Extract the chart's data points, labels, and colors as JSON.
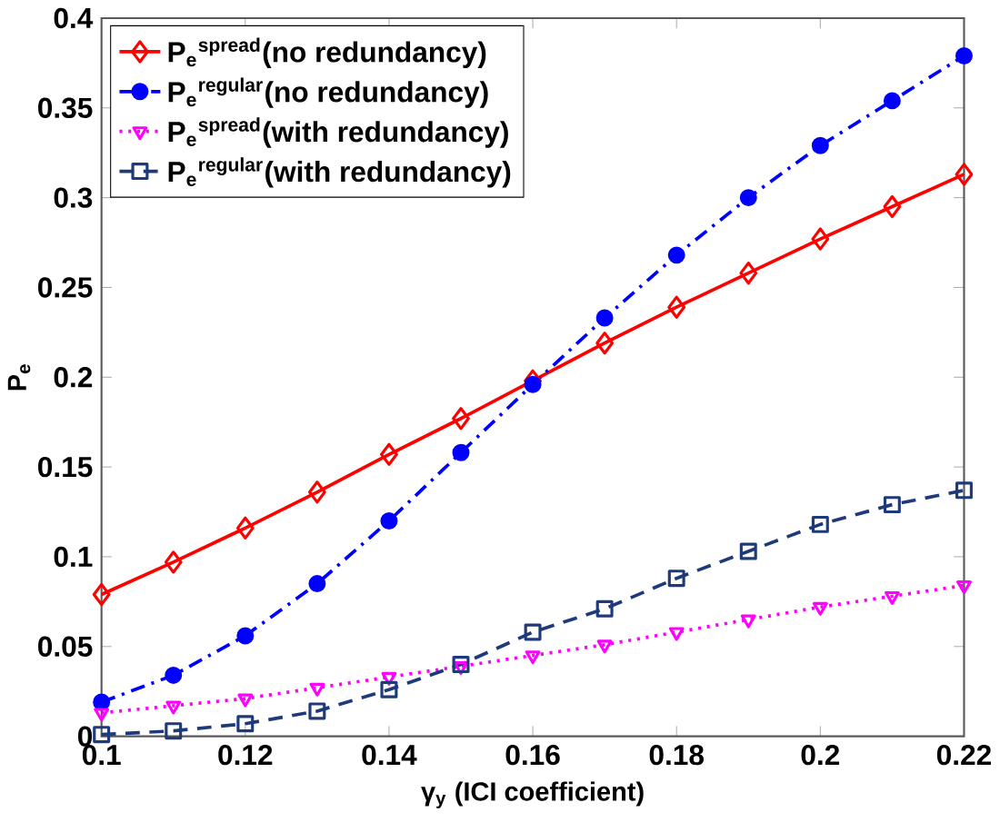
{
  "chart_data": {
    "type": "line",
    "xlabel": "γ$_{y}$ (ICI coefficient)",
    "ylabel": "P$_{e}$",
    "x": [
      0.1,
      0.11,
      0.12,
      0.13,
      0.14,
      0.15,
      0.16,
      0.17,
      0.18,
      0.19,
      0.2,
      0.21,
      0.22
    ],
    "xlim": [
      0.1,
      0.22
    ],
    "xticks": [
      0.1,
      0.12,
      0.14,
      0.16,
      0.18,
      0.2,
      0.22
    ],
    "ylim": [
      0,
      0.4
    ],
    "yticks": [
      0,
      0.05,
      0.1,
      0.15,
      0.2,
      0.25,
      0.3,
      0.35,
      0.4
    ],
    "legend": "top left",
    "grid": false,
    "series": [
      {
        "name": "P$_{e}$$^{spread}$(no redundancy)",
        "color": "#ff0000",
        "marker": "diamond",
        "line_style": "solid",
        "values": [
          0.079,
          0.097,
          0.116,
          0.136,
          0.157,
          0.177,
          0.198,
          0.219,
          0.239,
          0.258,
          0.277,
          0.295,
          0.313
        ]
      },
      {
        "name": "P$_{e}$$^{regular}$(no redundancy)",
        "color": "#0000ff",
        "marker": "circle",
        "line_style": "dashdot",
        "values": [
          0.019,
          0.034,
          0.056,
          0.085,
          0.12,
          0.158,
          0.196,
          0.233,
          0.268,
          0.3,
          0.329,
          0.354,
          0.379
        ]
      },
      {
        "name": "P$_{e}$$^{spread}$(with redundancy)",
        "color": "#ff00ff",
        "marker": "triangle",
        "line_style": "dotted",
        "values": [
          0.013,
          0.017,
          0.021,
          0.027,
          0.033,
          0.039,
          0.045,
          0.051,
          0.058,
          0.065,
          0.072,
          0.078,
          0.084
        ]
      },
      {
        "name": "P$_{e}$$^{regular}$(with redundancy)",
        "color": "#1f3a7a",
        "marker": "square",
        "line_style": "dashed",
        "values": [
          0.001,
          0.003,
          0.007,
          0.014,
          0.026,
          0.04,
          0.058,
          0.071,
          0.088,
          0.103,
          0.118,
          0.129,
          0.137
        ]
      }
    ]
  }
}
